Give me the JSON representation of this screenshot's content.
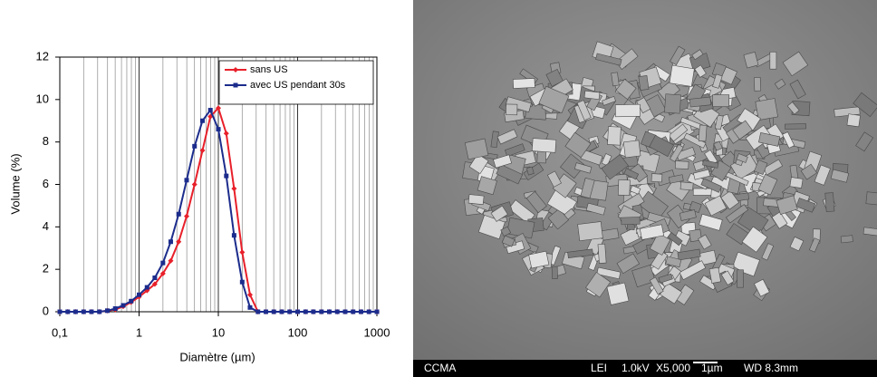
{
  "chart_data": {
    "type": "line",
    "xlabel": "Diamètre (µm)",
    "ylabel": "Volume (%)",
    "x": [
      0.1,
      0.126,
      0.158,
      0.2,
      0.251,
      0.316,
      0.398,
      0.501,
      0.631,
      0.794,
      1,
      1.26,
      1.58,
      2,
      2.51,
      3.16,
      3.98,
      5.01,
      6.31,
      7.94,
      10,
      12.6,
      15.8,
      20,
      25.1,
      31.6,
      39.8,
      50.1,
      63.1,
      79.4,
      100,
      126,
      158,
      200,
      251,
      316,
      398,
      501,
      631,
      794,
      1000
    ],
    "series": [
      {
        "name": "sans US",
        "color": "#e8202a",
        "marker": "diamond",
        "values": [
          0,
          0,
          0,
          0,
          0,
          0,
          0.05,
          0.1,
          0.25,
          0.45,
          0.7,
          1.0,
          1.3,
          1.8,
          2.4,
          3.3,
          4.5,
          6.0,
          7.6,
          9.2,
          9.6,
          8.4,
          5.8,
          2.8,
          0.8,
          0,
          0,
          0,
          0,
          0,
          0,
          0,
          0,
          0,
          0,
          0,
          0,
          0,
          0,
          0,
          0
        ]
      },
      {
        "name": "avec US pendant 30s",
        "color": "#1c2c8c",
        "marker": "square",
        "values": [
          0,
          0,
          0,
          0,
          0,
          0,
          0.05,
          0.15,
          0.3,
          0.5,
          0.8,
          1.15,
          1.6,
          2.3,
          3.3,
          4.6,
          6.2,
          7.8,
          9.0,
          9.5,
          8.6,
          6.4,
          3.6,
          1.4,
          0.2,
          0,
          0,
          0,
          0,
          0,
          0,
          0,
          0,
          0,
          0,
          0,
          0,
          0,
          0,
          0,
          0
        ]
      }
    ],
    "xscale": "log",
    "xlim": [
      0.1,
      1000
    ],
    "xticks": [
      {
        "value": 0.1,
        "label": "0,1"
      },
      1,
      10,
      100,
      1000
    ],
    "xminorticks": [
      0.2,
      0.3,
      0.4,
      0.5,
      0.6,
      0.7,
      0.8,
      0.9,
      2,
      3,
      4,
      5,
      6,
      7,
      8,
      9,
      20,
      30,
      40,
      50,
      60,
      70,
      80,
      90,
      200,
      300,
      400,
      500,
      600,
      700,
      800,
      900
    ],
    "ylim": [
      0,
      12
    ],
    "yticks": [
      0,
      2,
      4,
      6,
      8,
      10,
      12
    ],
    "grid": "x",
    "legend": "upper right"
  },
  "sem_image": {
    "info_bar": [
      "CCMA",
      "LEI",
      "1.0kV",
      "X5,000",
      "1µm",
      "WD 8.3mm"
    ]
  }
}
